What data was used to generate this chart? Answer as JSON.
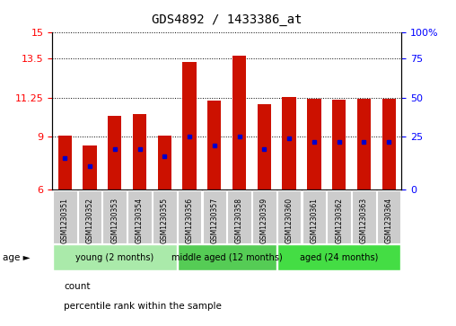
{
  "title": "GDS4892 / 1433386_at",
  "samples": [
    "GSM1230351",
    "GSM1230352",
    "GSM1230353",
    "GSM1230354",
    "GSM1230355",
    "GSM1230356",
    "GSM1230357",
    "GSM1230358",
    "GSM1230359",
    "GSM1230360",
    "GSM1230361",
    "GSM1230362",
    "GSM1230363",
    "GSM1230364"
  ],
  "bar_heights": [
    9.1,
    8.5,
    10.2,
    10.3,
    9.05,
    13.3,
    11.1,
    13.65,
    10.9,
    11.3,
    11.2,
    11.15,
    11.2,
    11.2
  ],
  "blue_marker_y": [
    7.8,
    7.3,
    8.3,
    8.3,
    7.9,
    9.0,
    8.5,
    9.0,
    8.3,
    8.9,
    8.7,
    8.7,
    8.7,
    8.7
  ],
  "ymin": 6,
  "ymax": 15,
  "yticks_left": [
    6,
    9,
    11.25,
    13.5,
    15
  ],
  "yticks_right_labels": [
    "0",
    "25",
    "50",
    "75",
    "100%"
  ],
  "bar_color": "#CC1100",
  "blue_color": "#0000CC",
  "bar_width": 0.55,
  "group_data": [
    {
      "label": "young (2 months)",
      "start": 0,
      "end": 4,
      "color": "#aaeaaa"
    },
    {
      "label": "middle aged (12 months)",
      "start": 5,
      "end": 8,
      "color": "#55cc55"
    },
    {
      "label": "aged (24 months)",
      "start": 9,
      "end": 13,
      "color": "#44dd44"
    }
  ],
  "sample_box_color": "#cccccc",
  "legend_count_color": "#CC1100",
  "legend_percentile_color": "#0000CC"
}
